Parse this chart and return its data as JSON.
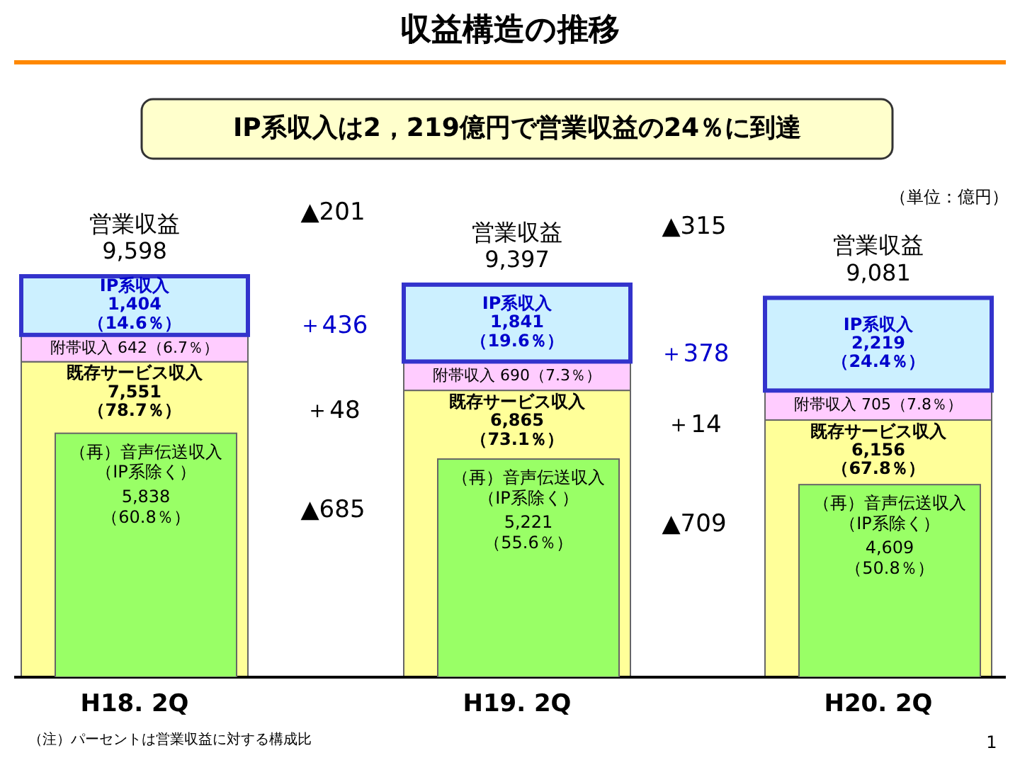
{
  "chart_data": [
    {
      "type": "bar",
      "title": "収益構造の推移",
      "subtitle": "IP系収入は2，219億円で営業収益の24％に到達",
      "categories": [
        "H18. 2Q",
        "H19. 2Q",
        "H20. 2Q"
      ],
      "stacked": true,
      "tick_labels": "x",
      "series": [
        {
          "name": "既存サービス収入",
          "color": "#ffff99",
          "values": [
            7551,
            6865,
            6156
          ],
          "value_labels": [
            "7,551\n（78.7％）",
            "6,865\n（73.1％）",
            "6,156\n（67.8％）"
          ]
        },
        {
          "name": "附帯収入",
          "color": "#ffccff",
          "values": [
            642,
            690,
            705
          ],
          "value_labels": [
            "642（6.7％）",
            "690（7.3％）",
            "705（7.8％）"
          ]
        },
        {
          "name": "IP系収入",
          "color": "#ccf0ff",
          "values": [
            1404,
            1841,
            2219
          ],
          "value_labels": [
            "1,404\n（14.6％）",
            "1,841\n（19.6％）",
            "2,219\n（24.4％）"
          ]
        }
      ],
      "totals": [
        "営業収益\n9,598",
        "営業収益\n9,397",
        "営業収益\n9,081"
      ],
      "annotations": [
        "▲201",
        "＋436",
        "＋48",
        "▲685",
        "▲315",
        "＋378",
        "＋14",
        "▲709",
        "（単位：億円）",
        "（注）パーセントは営業収益に対する構成比",
        "1"
      ]
    },
    {
      "type": "bar",
      "series": [
        {
          "name": "（再）音声伝送収入（IP系除く）",
          "color": "#99ff66",
          "values": [
            5838,
            5221,
            4609
          ],
          "value_labels": [
            "5,838\n（60.8％）",
            "5,221\n（55.6％）",
            "4,609\n（50.8％）"
          ]
        }
      ]
    }
  ]
}
